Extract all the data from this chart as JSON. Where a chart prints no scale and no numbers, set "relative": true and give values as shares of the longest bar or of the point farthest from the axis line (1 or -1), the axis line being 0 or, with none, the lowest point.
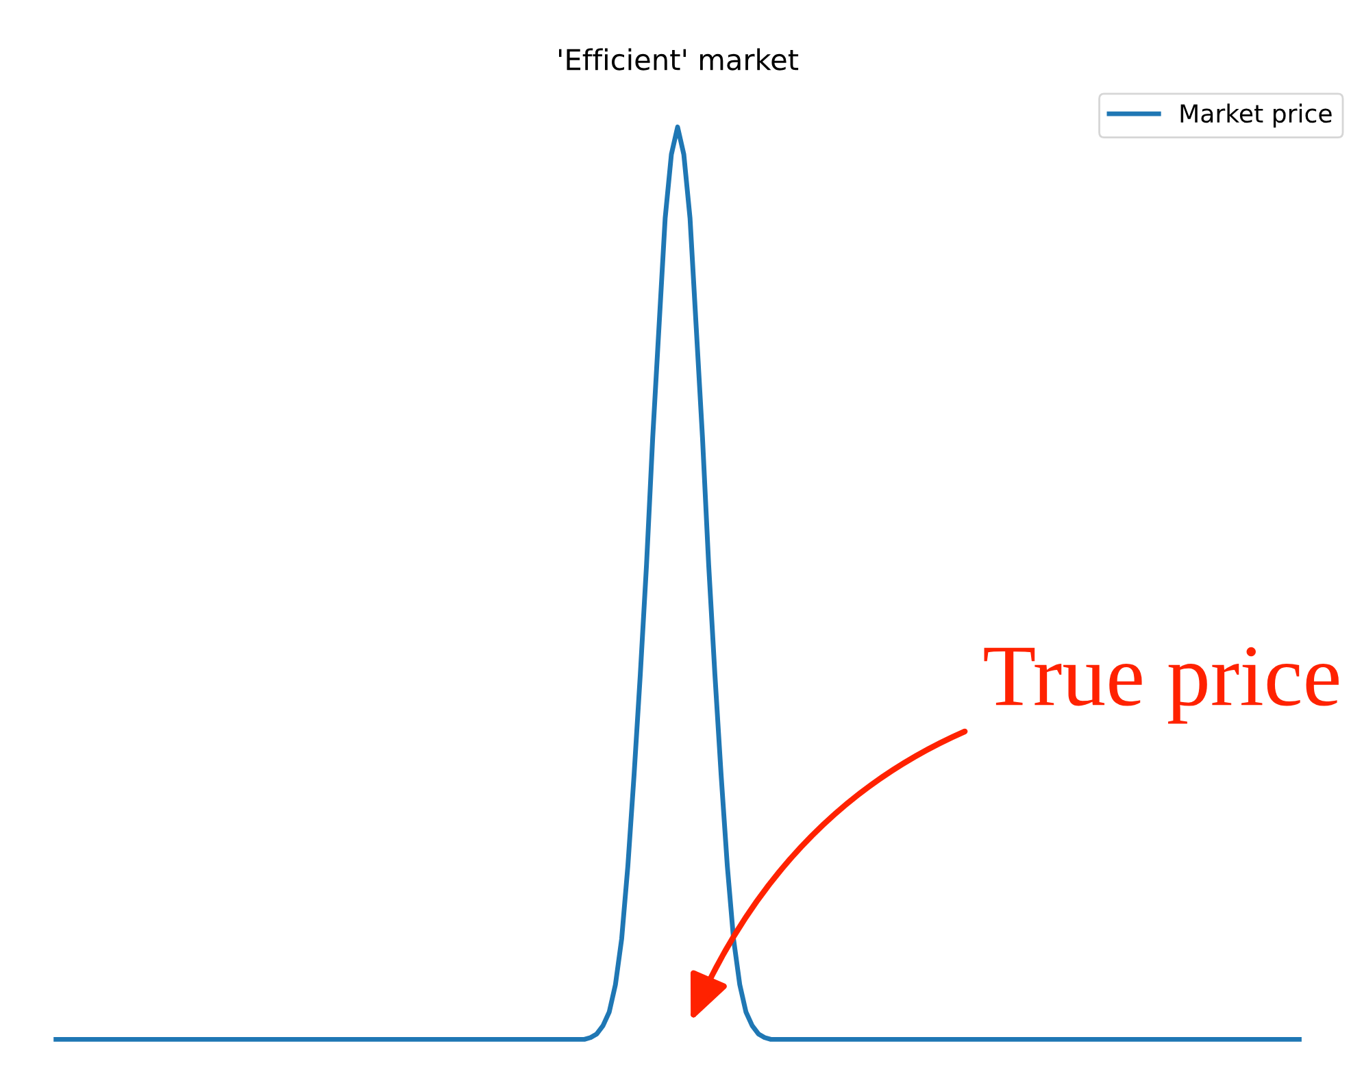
{
  "chart_data": {
    "type": "line",
    "title": "'Efficient' market",
    "relative": true,
    "legend": "top right",
    "categories": [
      null,
      null,
      null,
      null,
      null,
      null,
      null,
      null,
      null,
      null,
      null,
      null,
      null,
      null,
      null,
      null,
      null,
      null,
      null,
      null,
      null,
      null,
      null,
      null,
      null,
      null,
      null,
      null,
      null,
      null,
      null,
      null,
      null,
      null,
      null,
      null,
      null,
      null,
      null,
      null,
      null,
      null,
      null,
      null,
      null,
      null,
      null,
      null,
      null,
      null,
      null,
      null,
      null,
      null,
      null,
      null,
      null,
      null,
      null,
      null,
      null,
      null,
      null,
      null,
      null,
      null,
      null,
      null,
      null,
      null,
      null,
      null,
      null,
      null,
      null,
      null,
      null,
      null,
      null,
      null,
      null,
      null,
      null,
      null,
      null,
      null,
      null,
      null,
      null,
      null,
      null,
      null,
      null,
      null,
      null,
      null,
      null,
      null,
      null,
      null,
      null,
      null,
      null,
      null,
      null,
      null,
      null,
      null,
      null,
      null,
      null,
      null,
      null,
      null,
      null,
      null,
      null,
      null,
      null,
      null,
      null,
      null,
      null,
      null,
      null,
      null,
      null,
      null,
      null,
      null,
      null,
      null,
      null,
      null,
      null,
      null,
      null,
      null,
      null,
      null,
      null,
      null,
      null,
      null,
      null,
      null,
      null,
      null,
      null,
      null,
      null,
      null,
      null,
      null,
      null,
      null,
      null,
      null,
      null,
      null,
      null,
      null,
      null,
      null,
      null,
      null,
      null,
      null,
      null,
      null,
      null,
      null,
      null,
      null,
      null,
      null,
      null,
      null,
      null,
      null,
      null,
      null,
      null,
      null,
      null,
      null,
      null,
      null,
      null,
      null,
      null,
      null,
      null,
      null,
      null,
      null,
      null,
      null,
      null,
      null,
      null
    ],
    "series": [
      {
        "name": "Market price",
        "color": "#1f77b4",
        "values": [
          0,
          0,
          0,
          0,
          0,
          0,
          0,
          0,
          0,
          0,
          0,
          0,
          0,
          0,
          0,
          0,
          0,
          0,
          0,
          0,
          0,
          0,
          0,
          0,
          0,
          0,
          0,
          0,
          0,
          0,
          0,
          0,
          0,
          0,
          0,
          0,
          0,
          0,
          0,
          0,
          0,
          0,
          0,
          0,
          0,
          0,
          0,
          0,
          0,
          0,
          0,
          0,
          0,
          0,
          0,
          0,
          0,
          0,
          0,
          0,
          0,
          0,
          0,
          0,
          0,
          0,
          0,
          0,
          0,
          0,
          0,
          0,
          0,
          0,
          0,
          0,
          0,
          0,
          0,
          0,
          0,
          0,
          0,
          0,
          0,
          0,
          0.002,
          0.006,
          0.015,
          0.03,
          0.06,
          0.11,
          0.19,
          0.29,
          0.4,
          0.52,
          0.66,
          0.78,
          0.9,
          0.97,
          1.0,
          0.97,
          0.9,
          0.78,
          0.66,
          0.52,
          0.4,
          0.29,
          0.19,
          0.11,
          0.06,
          0.03,
          0.015,
          0.006,
          0.002,
          0,
          0,
          0,
          0,
          0,
          0,
          0,
          0,
          0,
          0,
          0,
          0,
          0,
          0,
          0,
          0,
          0,
          0,
          0,
          0,
          0,
          0,
          0,
          0,
          0,
          0,
          0,
          0,
          0,
          0,
          0,
          0,
          0,
          0,
          0,
          0,
          0,
          0,
          0,
          0,
          0,
          0,
          0,
          0,
          0,
          0,
          0,
          0,
          0,
          0,
          0,
          0,
          0,
          0,
          0,
          0,
          0,
          0,
          0,
          0,
          0,
          0,
          0,
          0,
          0,
          0,
          0,
          0,
          0,
          0,
          0,
          0,
          0,
          0,
          0,
          0,
          0,
          0,
          0,
          0,
          0,
          0,
          0,
          0,
          0,
          0
        ]
      }
    ],
    "annotations": [
      "True price"
    ]
  }
}
